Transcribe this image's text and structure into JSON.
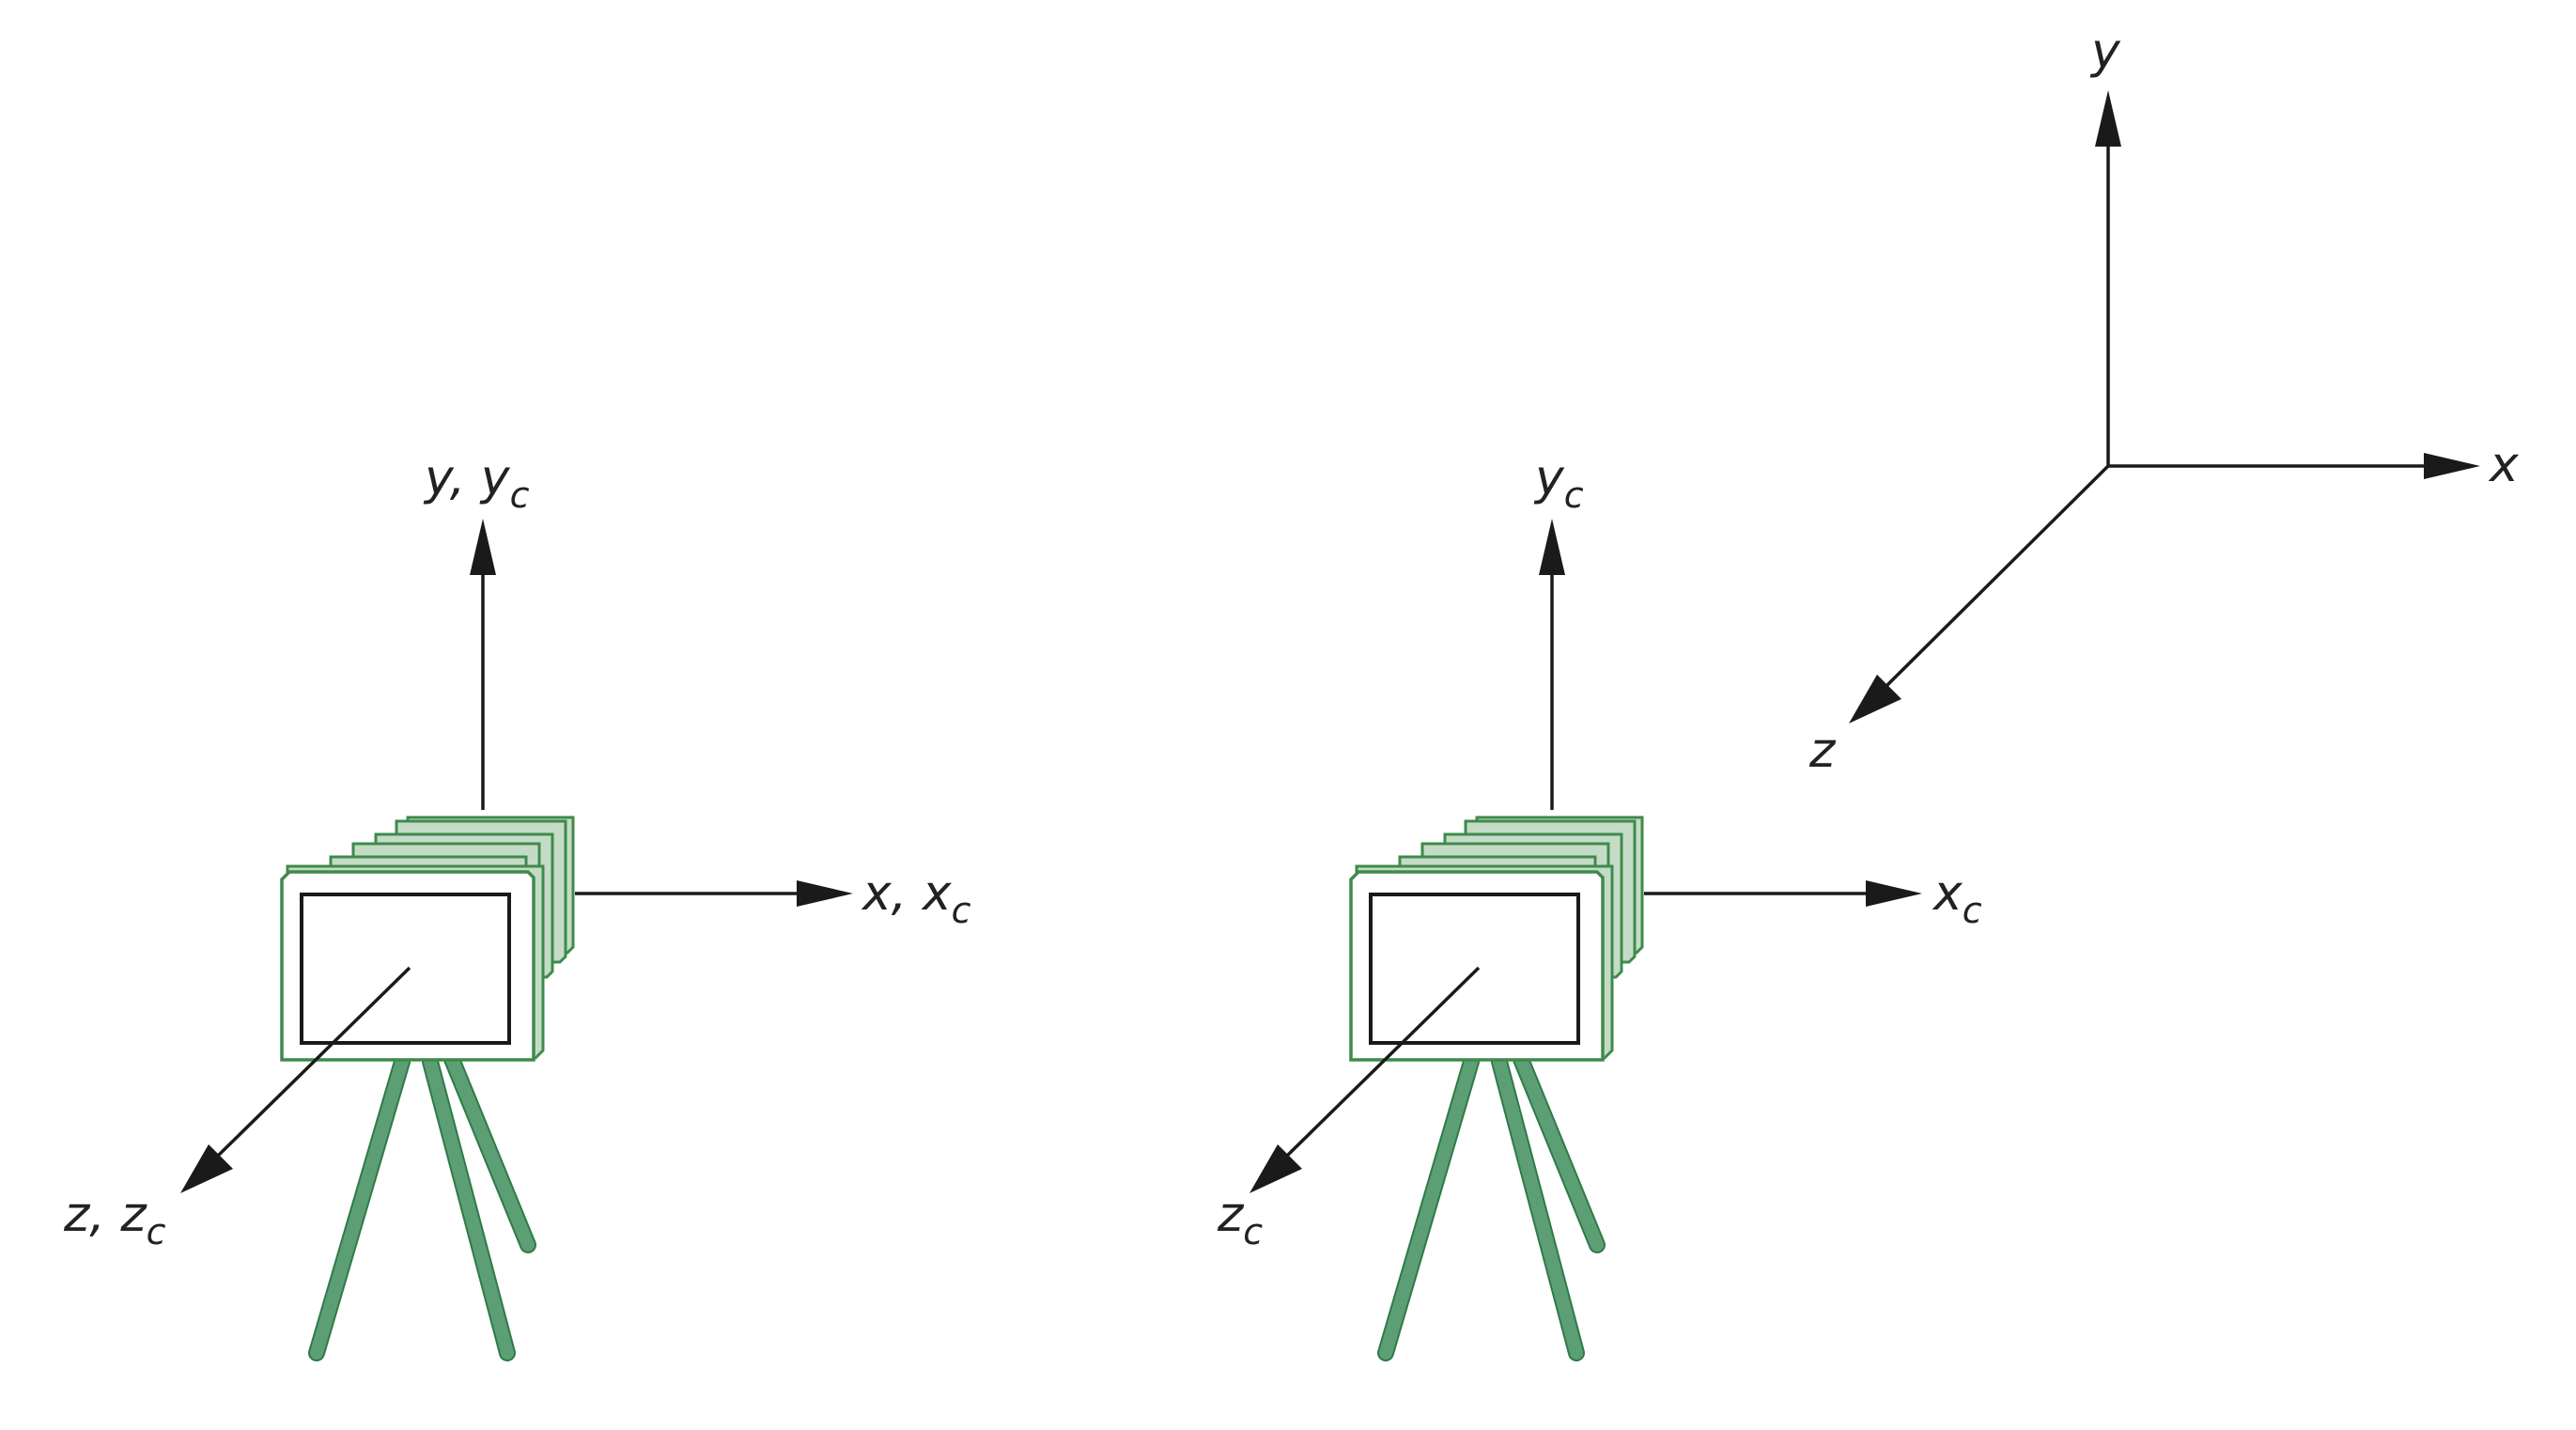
{
  "cameras": [
    {
      "id": "camera-aligned",
      "labels": {
        "y": {
          "main": "y, y",
          "sub": "c"
        },
        "x": {
          "main": "x, x",
          "sub": "c"
        },
        "z": {
          "main": "z, z",
          "sub": "c"
        }
      }
    },
    {
      "id": "camera-offset",
      "labels": {
        "y": {
          "main": "y",
          "sub": "c"
        },
        "x": {
          "main": "x",
          "sub": "c"
        },
        "z": {
          "main": "z",
          "sub": "c"
        }
      }
    }
  ],
  "world_axes": {
    "y": "y",
    "x": "x",
    "z": "z"
  },
  "colors": {
    "axis": "#1a1a1a",
    "camera_frame": "#3f8a4c",
    "camera_fill": "#c4dcc6",
    "tripod": "#5d9f74"
  }
}
